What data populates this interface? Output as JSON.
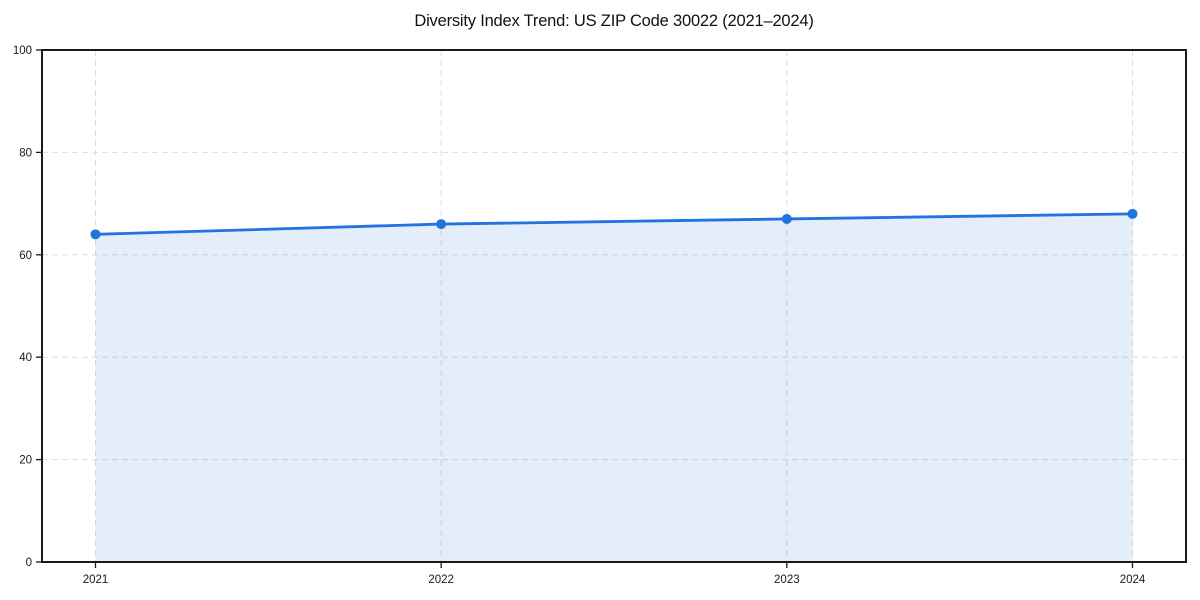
{
  "page": {
    "background_color": "#ffffff"
  },
  "chart_data": {
    "type": "area",
    "title": "Diversity Index Trend: US ZIP Code 30022 (2021–2024)",
    "categories": [
      "2021",
      "2022",
      "2023",
      "2024"
    ],
    "series": [
      {
        "name": "Diversity Index",
        "values": [
          64,
          66,
          67,
          68
        ]
      }
    ],
    "xlabel": "",
    "ylabel": "",
    "ylim": [
      0,
      100
    ],
    "yticks": [
      0,
      20,
      40,
      60,
      80,
      100
    ],
    "grid": "dashed-both-axes",
    "legend_position": "none",
    "line_color": "#2272e0",
    "marker_color": "#2272e0",
    "fill_color": "#2272e0",
    "fill_opacity": 0.12,
    "grid_color": "#dddddd",
    "axis_color": "#1a1a1a",
    "tick_label_color": "#1a1a1a"
  }
}
